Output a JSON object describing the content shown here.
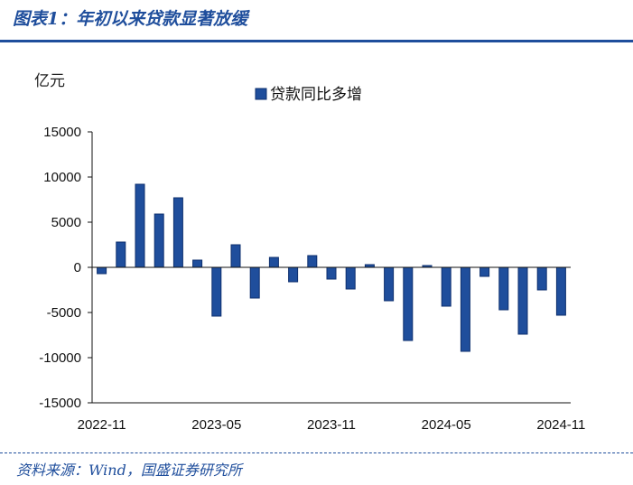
{
  "header": {
    "title": "图表1：年初以来贷款显著放缓",
    "unit": "亿元"
  },
  "footer": {
    "source": "资料来源：Wind，国盛证券研究所"
  },
  "colors": {
    "bar": "#1f4e9c",
    "bar_edge": "#0d2f6e",
    "axis": "#111111"
  },
  "chart_data": {
    "type": "bar",
    "ylabel": "亿元",
    "ylim": [
      -15000,
      15000
    ],
    "yticks": [
      15000,
      10000,
      5000,
      0,
      -5000,
      -10000,
      -15000
    ],
    "ytick_labels": [
      "15000",
      "10000",
      "5000",
      "0",
      "-5000",
      "-10000",
      "-15000"
    ],
    "xtick_labels": [
      {
        "label": "2022-11",
        "index": 0
      },
      {
        "label": "2023-05",
        "index": 6
      },
      {
        "label": "2023-11",
        "index": 12
      },
      {
        "label": "2024-05",
        "index": 18
      },
      {
        "label": "2024-11",
        "index": 24
      }
    ],
    "legend_position": "top-center",
    "categories": [
      "2022-11",
      "2022-12",
      "2023-01",
      "2023-02",
      "2023-03",
      "2023-04",
      "2023-05",
      "2023-06",
      "2023-07",
      "2023-08",
      "2023-09",
      "2023-10",
      "2023-11",
      "2023-12",
      "2024-01",
      "2024-02",
      "2024-03",
      "2024-04",
      "2024-05",
      "2024-06",
      "2024-07",
      "2024-08",
      "2024-09",
      "2024-10",
      "2024-11"
    ],
    "series": [
      {
        "name": "贷款同比多增",
        "values": [
          -700,
          2800,
          9200,
          5900,
          7700,
          800,
          -5400,
          2500,
          -3400,
          1100,
          -1600,
          1300,
          -1300,
          -2400,
          300,
          -3700,
          -8100,
          200,
          -4300,
          -9300,
          -1000,
          -4700,
          -7400,
          -2500,
          -5300
        ]
      }
    ]
  }
}
